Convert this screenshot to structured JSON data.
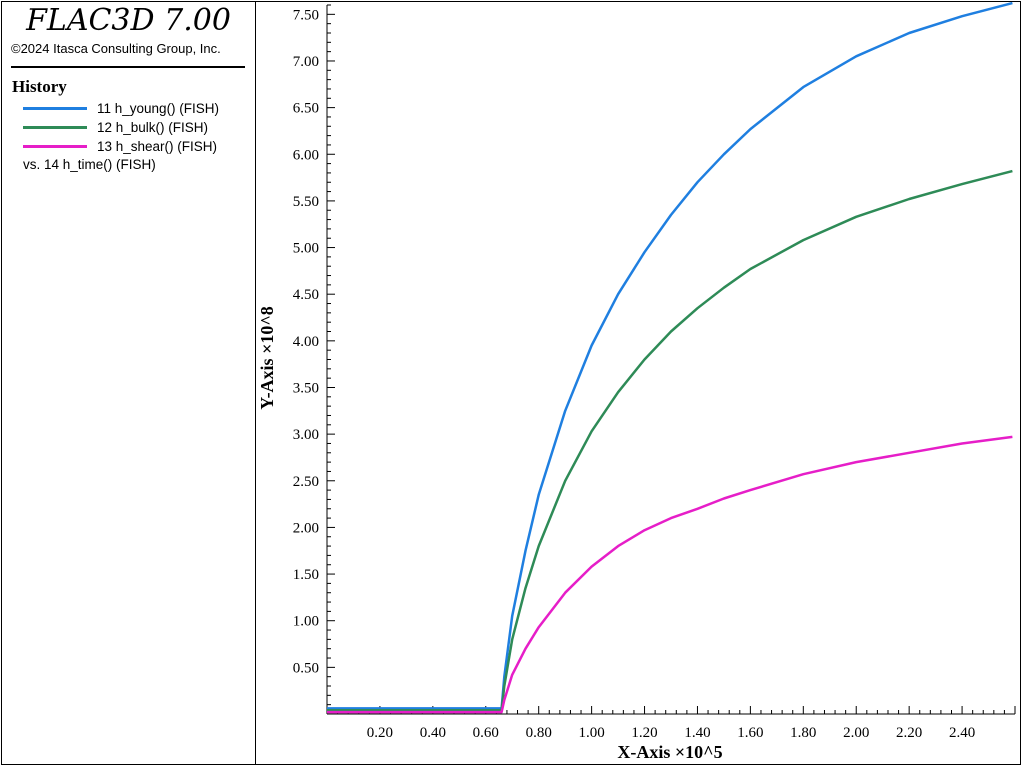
{
  "app": {
    "title": "FLAC3D 7.00",
    "copyright": "©2024 Itasca Consulting Group, Inc."
  },
  "legend": {
    "heading": "History",
    "items": [
      {
        "label": "11 h_young() (FISH)",
        "color": "#1f7fe0"
      },
      {
        "label": "12 h_bulk() (FISH)",
        "color": "#2e8b57"
      },
      {
        "label": "13 h_shear() (FISH)",
        "color": "#e61ec8"
      }
    ],
    "vs": "vs. 14 h_time() (FISH)"
  },
  "chart_data": {
    "type": "line",
    "xlabel": "X-Axis ×10^5",
    "ylabel": "Y-Axis ×10^8",
    "xlim": [
      0,
      2.6
    ],
    "ylim": [
      0,
      7.6
    ],
    "grid": false,
    "xticks": [
      "0.20",
      "0.40",
      "0.60",
      "0.80",
      "1.00",
      "1.20",
      "1.40",
      "1.60",
      "1.80",
      "2.00",
      "2.20",
      "2.40"
    ],
    "yticks": [
      "0.50",
      "1.00",
      "1.50",
      "2.00",
      "2.50",
      "3.00",
      "3.50",
      "4.00",
      "4.50",
      "5.00",
      "5.50",
      "6.00",
      "6.50",
      "7.00",
      "7.50"
    ],
    "series": [
      {
        "name": "11 h_young() (FISH)",
        "color": "#1f7fe0",
        "x": [
          0.0,
          0.66,
          0.67,
          0.7,
          0.75,
          0.8,
          0.9,
          1.0,
          1.1,
          1.2,
          1.3,
          1.4,
          1.5,
          1.6,
          1.8,
          2.0,
          2.2,
          2.4,
          2.59
        ],
        "y": [
          0.06,
          0.06,
          0.4,
          1.05,
          1.75,
          2.35,
          3.25,
          3.95,
          4.5,
          4.95,
          5.35,
          5.7,
          6.0,
          6.27,
          6.72,
          7.05,
          7.3,
          7.48,
          7.62
        ]
      },
      {
        "name": "12 h_bulk() (FISH)",
        "color": "#2e8b57",
        "x": [
          0.0,
          0.66,
          0.67,
          0.7,
          0.75,
          0.8,
          0.9,
          1.0,
          1.1,
          1.2,
          1.3,
          1.4,
          1.5,
          1.6,
          1.8,
          2.0,
          2.2,
          2.4,
          2.59
        ],
        "y": [
          0.04,
          0.04,
          0.3,
          0.8,
          1.35,
          1.8,
          2.5,
          3.03,
          3.45,
          3.8,
          4.1,
          4.35,
          4.57,
          4.77,
          5.08,
          5.33,
          5.52,
          5.68,
          5.82
        ]
      },
      {
        "name": "13 h_shear() (FISH)",
        "color": "#e61ec8",
        "x": [
          0.0,
          0.66,
          0.67,
          0.7,
          0.75,
          0.8,
          0.9,
          1.0,
          1.1,
          1.2,
          1.3,
          1.4,
          1.5,
          1.6,
          1.8,
          2.0,
          2.2,
          2.4,
          2.59
        ],
        "y": [
          0.02,
          0.02,
          0.15,
          0.42,
          0.7,
          0.93,
          1.3,
          1.58,
          1.8,
          1.97,
          2.1,
          2.2,
          2.31,
          2.4,
          2.57,
          2.7,
          2.8,
          2.9,
          2.97
        ]
      }
    ]
  }
}
